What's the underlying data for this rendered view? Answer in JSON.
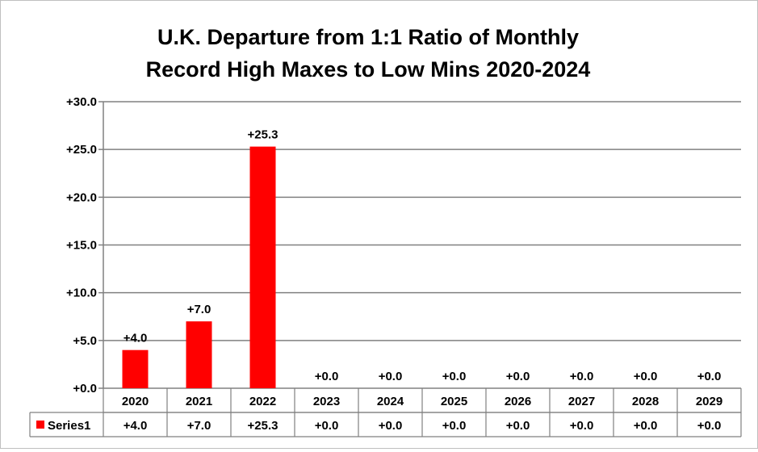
{
  "chart_data": {
    "type": "bar",
    "title": "U.K. Departure from 1:1 Ratio of Monthly",
    "title_line2": "Record High Maxes to Low Mins 2020-2024",
    "xlabel": "",
    "ylabel": "",
    "categories": [
      "2020",
      "2021",
      "2022",
      "2023",
      "2024",
      "2025",
      "2026",
      "2027",
      "2028",
      "2029"
    ],
    "series": [
      {
        "name": "Series1",
        "values": [
          4.0,
          7.0,
          25.3,
          0.0,
          0.0,
          0.0,
          0.0,
          0.0,
          0.0,
          0.0
        ],
        "labels": [
          "+4.0",
          "+7.0",
          "+25.3",
          "+0.0",
          "+0.0",
          "+0.0",
          "+0.0",
          "+0.0",
          "+0.0",
          "+0.0"
        ],
        "color": "#ff0000"
      }
    ],
    "ylim": [
      0,
      30
    ],
    "yticks": [
      0,
      5,
      10,
      15,
      20,
      25,
      30
    ],
    "ytick_labels": [
      "+0.0",
      "+5.0",
      "+10.0",
      "+15.0",
      "+20.0",
      "+25.0",
      "+30.0"
    ],
    "grid": true,
    "data_table": true,
    "legend": "data-table"
  }
}
